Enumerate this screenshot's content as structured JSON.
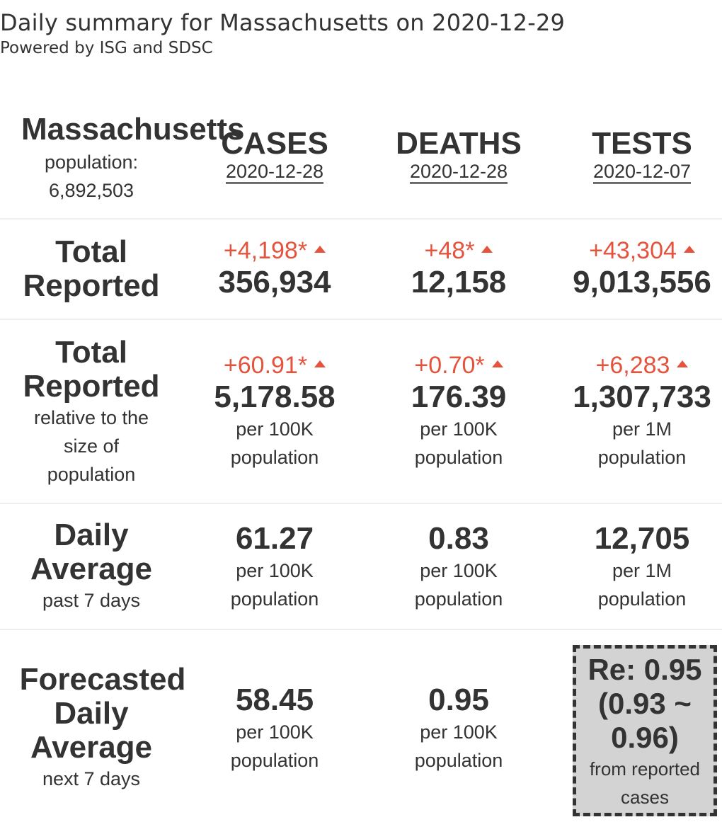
{
  "header": {
    "title": "Daily summary for Massachusetts on 2020-12-29",
    "subtitle": "Powered by ISG and SDSC"
  },
  "state": {
    "name": "Massachusetts",
    "population_label": "population:",
    "population": "6,892,503"
  },
  "columns": [
    {
      "title": "CASES",
      "date": "2020-12-28"
    },
    {
      "title": "DEATHS",
      "date": "2020-12-28"
    },
    {
      "title": "TESTS",
      "date": "2020-12-07"
    }
  ],
  "rows": {
    "total": {
      "label": [
        "Total",
        "Reported"
      ],
      "cells": [
        {
          "delta": "+4,198*",
          "value": "356,934"
        },
        {
          "delta": "+48*",
          "value": "12,158"
        },
        {
          "delta": "+43,304",
          "value": "9,013,556"
        }
      ]
    },
    "relative": {
      "label": [
        "Total",
        "Reported"
      ],
      "sublabel": [
        "relative to the",
        "size of",
        "population"
      ],
      "cells": [
        {
          "delta": "+60.91*",
          "value": "5,178.58",
          "unit": [
            "per 100K",
            "population"
          ]
        },
        {
          "delta": "+0.70*",
          "value": "176.39",
          "unit": [
            "per 100K",
            "population"
          ]
        },
        {
          "delta": "+6,283",
          "value": "1,307,733",
          "unit": [
            "per 1M",
            "population"
          ]
        }
      ]
    },
    "daily": {
      "label": [
        "Daily",
        "Average"
      ],
      "sublabel": [
        "past 7 days"
      ],
      "cells": [
        {
          "value": "61.27",
          "unit": [
            "per 100K",
            "population"
          ]
        },
        {
          "value": "0.83",
          "unit": [
            "per 100K",
            "population"
          ]
        },
        {
          "value": "12,705",
          "unit": [
            "per 1M",
            "population"
          ]
        }
      ]
    },
    "forecast": {
      "label": [
        "Forecasted",
        "Daily",
        "Average"
      ],
      "sublabel": [
        "next 7 days"
      ],
      "cells": [
        {
          "value": "58.45",
          "unit": [
            "per 100K",
            "population"
          ]
        },
        {
          "value": "0.95",
          "unit": [
            "per 100K",
            "population"
          ]
        }
      ],
      "re": {
        "lines": [
          "Re: 0.95",
          "(0.93 ~",
          "0.96)"
        ],
        "note": [
          "from reported",
          "cases"
        ]
      }
    }
  },
  "colors": {
    "text": "#333333",
    "delta": "#e5533d",
    "divider": "#eeeeee",
    "re_box": "#d3d3d3"
  }
}
